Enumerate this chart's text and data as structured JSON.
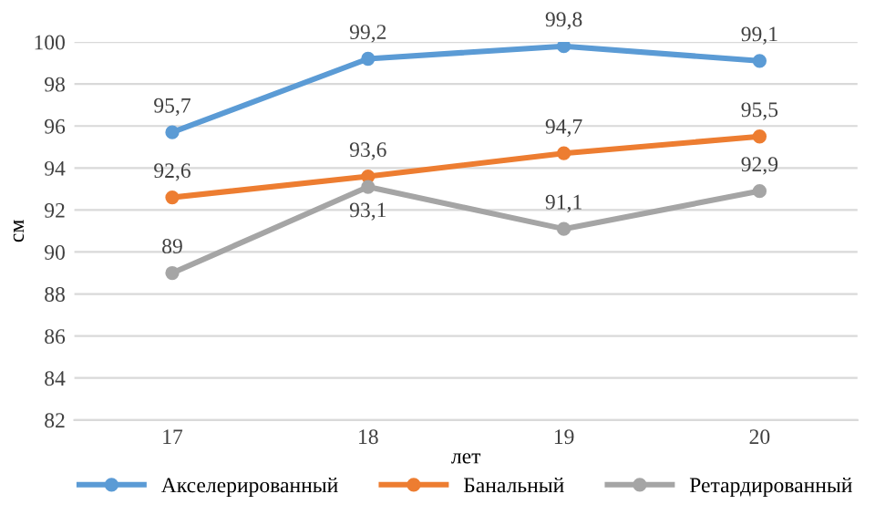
{
  "chart_data": {
    "type": "line",
    "xlabel": "лет",
    "ylabel": "см",
    "categories": [
      "17",
      "18",
      "19",
      "20"
    ],
    "series": [
      {
        "name": "Акселерированный",
        "color": "#5b9bd5",
        "values": [
          95.7,
          99.2,
          99.8,
          99.1
        ],
        "value_labels": [
          "95,7",
          "99,2",
          "99,8",
          "99,1"
        ]
      },
      {
        "name": "Банальный",
        "color": "#ed7d31",
        "values": [
          92.6,
          93.6,
          94.7,
          95.5
        ],
        "value_labels": [
          "92,6",
          "93,6",
          "94,7",
          "95,5"
        ]
      },
      {
        "name": "Ретардированный",
        "color": "#a5a5a5",
        "values": [
          89,
          93.1,
          91.1,
          92.9
        ],
        "value_labels": [
          "89",
          "93,1",
          "91,1",
          "92,9"
        ]
      }
    ],
    "ylim": [
      82,
      100
    ],
    "yticks": [
      82,
      84,
      86,
      88,
      90,
      92,
      94,
      96,
      98,
      100
    ],
    "grid": "y",
    "legend": "bottom",
    "marker": "circle",
    "line_style": "solid"
  }
}
